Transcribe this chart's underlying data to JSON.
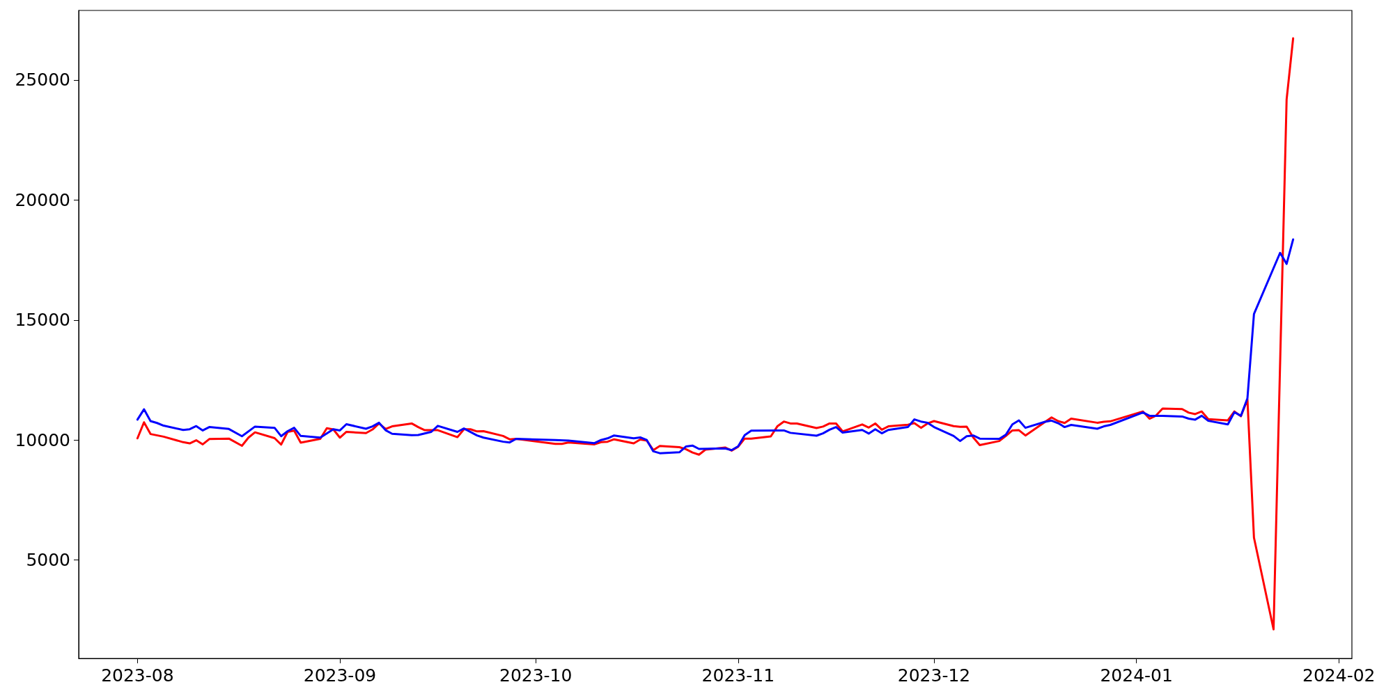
{
  "chart_data": {
    "type": "line",
    "xlim": [
      "2023-07-23",
      "2024-02-03"
    ],
    "xticks": [
      "2023-08",
      "2023-09",
      "2023-10",
      "2023-11",
      "2023-12",
      "2024-01",
      "2024-02"
    ],
    "ylim": [
      900,
      27900
    ],
    "yticks": [
      5000,
      10000,
      15000,
      20000,
      25000
    ],
    "grid": false,
    "marker": "none",
    "line_style": "solid",
    "series": [
      {
        "color": "#ff0000",
        "x": [
          "2023-08-01",
          "2023-08-02",
          "2023-08-03",
          "2023-08-05",
          "2023-08-08",
          "2023-08-09",
          "2023-08-10",
          "2023-08-11",
          "2023-08-12",
          "2023-08-15",
          "2023-08-17",
          "2023-08-18",
          "2023-08-19",
          "2023-08-22",
          "2023-08-23",
          "2023-08-24",
          "2023-08-25",
          "2023-08-26",
          "2023-08-29",
          "2023-08-30",
          "2023-08-31",
          "2023-09-01",
          "2023-09-02",
          "2023-09-05",
          "2023-09-06",
          "2023-09-07",
          "2023-09-08",
          "2023-09-09",
          "2023-09-12",
          "2023-09-13",
          "2023-09-14",
          "2023-09-16",
          "2023-09-19",
          "2023-09-20",
          "2023-09-21",
          "2023-09-22",
          "2023-09-23",
          "2023-09-26",
          "2023-09-27",
          "2023-09-28",
          "2023-10-04",
          "2023-10-05",
          "2023-10-06",
          "2023-10-10",
          "2023-10-11",
          "2023-10-12",
          "2023-10-13",
          "2023-10-16",
          "2023-10-17",
          "2023-10-18",
          "2023-10-19",
          "2023-10-20",
          "2023-10-23",
          "2023-10-24",
          "2023-10-25",
          "2023-10-26",
          "2023-10-27",
          "2023-10-30",
          "2023-10-31",
          "2023-11-01",
          "2023-11-02",
          "2023-11-03",
          "2023-11-06",
          "2023-11-07",
          "2023-11-08",
          "2023-11-09",
          "2023-11-10",
          "2023-11-13",
          "2023-11-14",
          "2023-11-15",
          "2023-11-16",
          "2023-11-17",
          "2023-11-20",
          "2023-11-21",
          "2023-11-22",
          "2023-11-23",
          "2023-11-24",
          "2023-11-27",
          "2023-11-28",
          "2023-11-29",
          "2023-11-30",
          "2023-12-01",
          "2023-12-04",
          "2023-12-05",
          "2023-12-06",
          "2023-12-07",
          "2023-12-08",
          "2023-12-11",
          "2023-12-12",
          "2023-12-13",
          "2023-12-14",
          "2023-12-15",
          "2023-12-19",
          "2023-12-20",
          "2023-12-21",
          "2023-12-22",
          "2023-12-26",
          "2023-12-27",
          "2023-12-28",
          "2024-01-02",
          "2024-01-03",
          "2024-01-04",
          "2024-01-05",
          "2024-01-08",
          "2024-01-09",
          "2024-01-10",
          "2024-01-11",
          "2024-01-12",
          "2024-01-15",
          "2024-01-16",
          "2024-01-17",
          "2024-01-18",
          "2024-01-19",
          "2024-01-22",
          "2024-01-24",
          "2024-01-25"
        ],
        "values": [
          10070,
          10740,
          10250,
          10140,
          9910,
          9860,
          9990,
          9820,
          10040,
          10060,
          9760,
          10100,
          10320,
          10080,
          9810,
          10340,
          10390,
          9890,
          10050,
          10490,
          10440,
          10100,
          10340,
          10290,
          10440,
          10690,
          10460,
          10570,
          10690,
          10540,
          10410,
          10410,
          10120,
          10450,
          10450,
          10360,
          10370,
          10170,
          10030,
          10050,
          9840,
          9840,
          9900,
          9820,
          9910,
          9930,
          10030,
          9860,
          10020,
          9980,
          9580,
          9750,
          9700,
          9620,
          9480,
          9390,
          9600,
          9690,
          9560,
          9720,
          10060,
          10060,
          10150,
          10570,
          10770,
          10690,
          10690,
          10500,
          10560,
          10690,
          10690,
          10360,
          10650,
          10520,
          10690,
          10430,
          10570,
          10640,
          10700,
          10510,
          10690,
          10790,
          10580,
          10550,
          10560,
          10110,
          9790,
          9960,
          10170,
          10400,
          10410,
          10190,
          10940,
          10790,
          10710,
          10890,
          10720,
          10760,
          10780,
          11190,
          10890,
          11020,
          11310,
          11290,
          11140,
          11080,
          11190,
          10870,
          10820,
          11190,
          10990,
          11690,
          5930,
          2110,
          24190,
          26740
        ]
      },
      {
        "color": "#0000ff",
        "x": [
          "2023-08-01",
          "2023-08-02",
          "2023-08-03",
          "2023-08-04",
          "2023-08-05",
          "2023-08-08",
          "2023-08-09",
          "2023-08-10",
          "2023-08-11",
          "2023-08-12",
          "2023-08-15",
          "2023-08-17",
          "2023-08-19",
          "2023-08-22",
          "2023-08-23",
          "2023-08-24",
          "2023-08-25",
          "2023-08-26",
          "2023-08-29",
          "2023-08-31",
          "2023-09-01",
          "2023-09-02",
          "2023-09-05",
          "2023-09-06",
          "2023-09-07",
          "2023-09-08",
          "2023-09-09",
          "2023-09-12",
          "2023-09-13",
          "2023-09-15",
          "2023-09-16",
          "2023-09-19",
          "2023-09-20",
          "2023-09-22",
          "2023-09-23",
          "2023-09-26",
          "2023-09-27",
          "2023-09-28",
          "2023-10-04",
          "2023-10-06",
          "2023-10-10",
          "2023-10-11",
          "2023-10-12",
          "2023-10-13",
          "2023-10-16",
          "2023-10-17",
          "2023-10-18",
          "2023-10-19",
          "2023-10-20",
          "2023-10-23",
          "2023-10-24",
          "2023-10-25",
          "2023-10-26",
          "2023-10-30",
          "2023-10-31",
          "2023-11-01",
          "2023-11-02",
          "2023-11-03",
          "2023-11-07",
          "2023-11-08",
          "2023-11-09",
          "2023-11-13",
          "2023-11-14",
          "2023-11-15",
          "2023-11-16",
          "2023-11-17",
          "2023-11-20",
          "2023-11-21",
          "2023-11-22",
          "2023-11-23",
          "2023-11-24",
          "2023-11-27",
          "2023-11-28",
          "2023-11-29",
          "2023-11-30",
          "2023-12-01",
          "2023-12-04",
          "2023-12-05",
          "2023-12-06",
          "2023-12-07",
          "2023-12-08",
          "2023-12-11",
          "2023-12-12",
          "2023-12-13",
          "2023-12-14",
          "2023-12-15",
          "2023-12-18",
          "2023-12-19",
          "2023-12-20",
          "2023-12-21",
          "2023-12-22",
          "2023-12-26",
          "2023-12-27",
          "2023-12-28",
          "2024-01-02",
          "2024-01-03",
          "2024-01-05",
          "2024-01-08",
          "2024-01-09",
          "2024-01-10",
          "2024-01-11",
          "2024-01-12",
          "2024-01-15",
          "2024-01-16",
          "2024-01-17",
          "2024-01-18",
          "2024-01-19",
          "2024-01-23",
          "2024-01-24",
          "2024-01-25"
        ],
        "values": [
          10850,
          11280,
          10790,
          10710,
          10600,
          10420,
          10450,
          10580,
          10400,
          10540,
          10460,
          10160,
          10560,
          10510,
          10160,
          10370,
          10510,
          10170,
          10100,
          10450,
          10400,
          10660,
          10470,
          10570,
          10720,
          10410,
          10260,
          10200,
          10210,
          10340,
          10590,
          10340,
          10480,
          10190,
          10100,
          9930,
          9900,
          10050,
          10000,
          9980,
          9870,
          10000,
          10070,
          10190,
          10070,
          10110,
          10000,
          9530,
          9450,
          9490,
          9730,
          9770,
          9630,
          9650,
          9580,
          9740,
          10200,
          10390,
          10400,
          10400,
          10300,
          10180,
          10280,
          10430,
          10540,
          10310,
          10420,
          10270,
          10450,
          10280,
          10420,
          10540,
          10860,
          10770,
          10720,
          10540,
          10170,
          9960,
          10160,
          10190,
          10060,
          10050,
          10220,
          10650,
          10820,
          10510,
          10760,
          10810,
          10700,
          10540,
          10630,
          10470,
          10570,
          10630,
          11150,
          11010,
          11010,
          10980,
          10890,
          10850,
          11010,
          10800,
          10650,
          11160,
          11010,
          11740,
          15250,
          17800,
          17340,
          18360
        ]
      }
    ]
  }
}
